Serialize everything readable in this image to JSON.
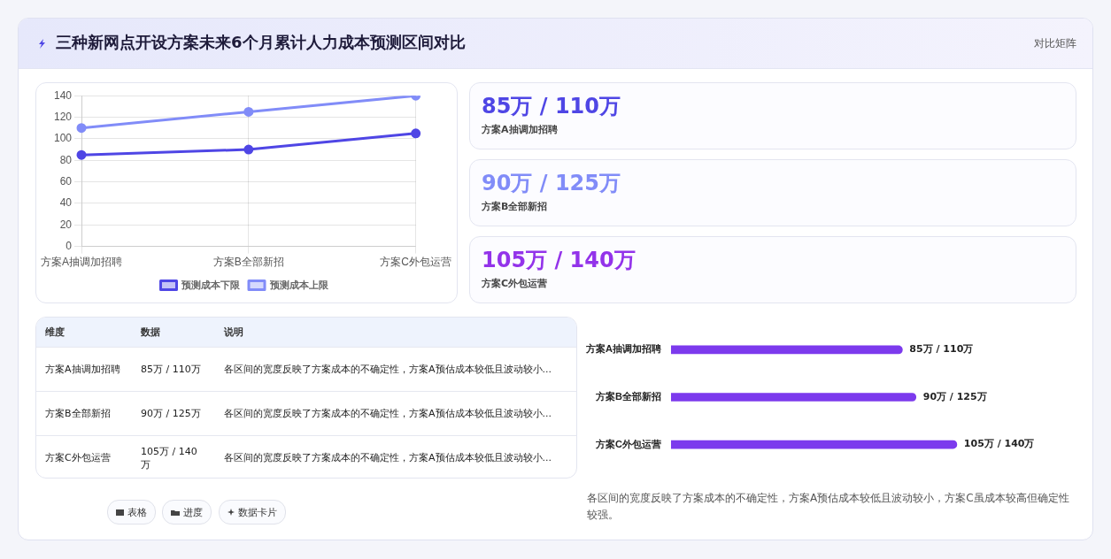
{
  "chart_data": [
    {
      "type": "line",
      "title": "三种新网点开设方案未来6个月累计人力成本预测区间对比",
      "categories": [
        "方案A抽调加招聘",
        "方案B全部新招",
        "方案C外包运营"
      ],
      "series": [
        {
          "name": "预测成本下限",
          "color": "#4f46e5",
          "values": [
            85,
            90,
            105
          ]
        },
        {
          "name": "预测成本上限",
          "color": "#818cf8",
          "values": [
            110,
            125,
            140
          ]
        }
      ],
      "ylim": [
        0,
        140
      ],
      "yticks": [
        0,
        20,
        40,
        60,
        80,
        100,
        120,
        140
      ],
      "grid": true,
      "legend": "bottom",
      "marker": "circle",
      "line_style": "solid"
    },
    {
      "type": "other",
      "annotations": [
        "85万 / 110万",
        "方案A抽调加招聘",
        "90万 / 125万",
        "方案B全部新招",
        "105万 / 140万",
        "方案C外包运营"
      ],
      "colors": [
        "#4f46e5",
        "#818cf8",
        "#9333ea"
      ]
    },
    {
      "type": "other",
      "annotations": [
        "维度",
        "数据",
        "说明",
        "方案A抽调加招聘",
        "85万 / 110万",
        "各区间的宽度反映了方案成本的不确定性，方案A预估成本较低且波动较小...",
        "方案B全部新招",
        "90万 / 125万",
        "各区间的宽度反映了方案成本的不确定性，方案A预估成本较低且波动较小...",
        "方案C外包运营",
        "105万 / 140万",
        "各区间的宽度反映了方案成本的不确定性，方案A预估成本较低且波动较小..."
      ]
    },
    {
      "type": "bar",
      "orientation": "horizontal",
      "categories": [
        "方案A抽调加招聘",
        "方案B全部新招",
        "方案C外包运营"
      ],
      "values": [
        85,
        90,
        105
      ],
      "color": "#7c3aed",
      "value_labels": [
        "85万 / 110万",
        "90万 / 125万",
        "105万 / 140万"
      ],
      "annotations": [
        "各区间的宽度反映了方案成本的不确定性，方案A预估成本较低且波动较小，方案C虽成本较高但确定性较强。"
      ],
      "legend": false,
      "grid": false
    },
    {
      "type": "other",
      "annotations": [
        "对比矩阵",
        "表格",
        "进度",
        "数据卡片"
      ]
    }
  ]
}
